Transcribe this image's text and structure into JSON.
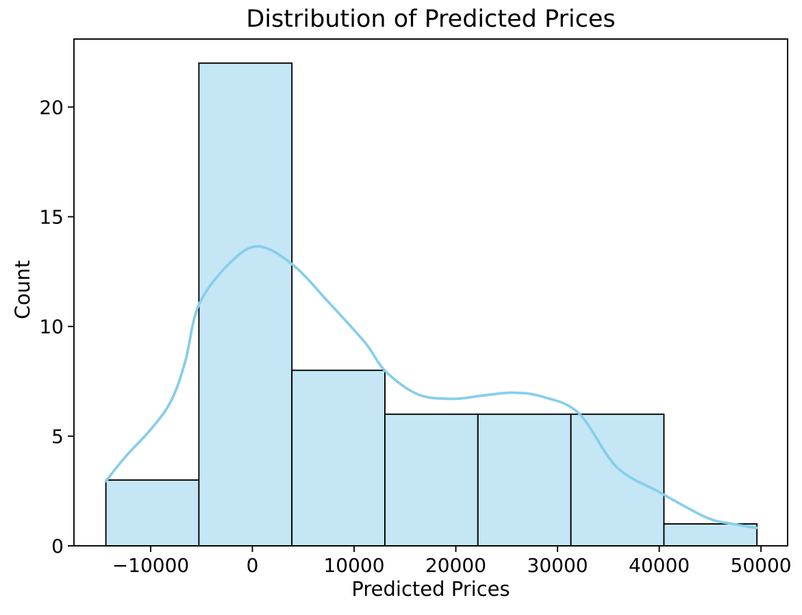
{
  "figure": {
    "background": "#ffffff"
  },
  "chart_data": {
    "type": "bar",
    "subtype": "histogram_with_kde",
    "title": "Distribution of Predicted Prices",
    "xlabel": "Predicted Prices",
    "ylabel": "Count",
    "grid": false,
    "legend": null,
    "xlim": [
      -17540,
      52620
    ],
    "ylim": [
      0,
      23.1
    ],
    "bin_edges": [
      -14400,
      -5257,
      3886,
      13029,
      22171,
      31314,
      40457,
      49600
    ],
    "counts": [
      3,
      22,
      8,
      6,
      6,
      6,
      1
    ],
    "total_count": 52,
    "xticks": [
      {
        "value": -10000,
        "label": "−10000"
      },
      {
        "value": 0,
        "label": "0"
      },
      {
        "value": 10000,
        "label": "10000"
      },
      {
        "value": 20000,
        "label": "20000"
      },
      {
        "value": 30000,
        "label": "30000"
      },
      {
        "value": 40000,
        "label": "40000"
      },
      {
        "value": 50000,
        "label": "50000"
      }
    ],
    "yticks": [
      {
        "value": 0,
        "label": "0"
      },
      {
        "value": 5,
        "label": "5"
      },
      {
        "value": 10,
        "label": "10"
      },
      {
        "value": 15,
        "label": "15"
      },
      {
        "value": 20,
        "label": "20"
      }
    ],
    "kde_points": [
      [
        -14400,
        2.95
      ],
      [
        -12500,
        4.05
      ],
      [
        -10000,
        5.3
      ],
      [
        -8000,
        6.6
      ],
      [
        -6600,
        8.4
      ],
      [
        -5250,
        11.0
      ],
      [
        -2200,
        12.9
      ],
      [
        600,
        13.65
      ],
      [
        4000,
        12.8
      ],
      [
        7500,
        11.1
      ],
      [
        11100,
        9.25
      ],
      [
        13100,
        7.95
      ],
      [
        16300,
        6.9
      ],
      [
        19700,
        6.7
      ],
      [
        22600,
        6.85
      ],
      [
        25600,
        6.98
      ],
      [
        28500,
        6.8
      ],
      [
        32100,
        6.04
      ],
      [
        35800,
        3.6
      ],
      [
        40000,
        2.45
      ],
      [
        44600,
        1.3
      ],
      [
        47200,
        1.0
      ],
      [
        49600,
        0.82
      ]
    ],
    "colors": {
      "bar_fill": "#c5e6f5",
      "bar_edge": "#000000",
      "kde_line": "#87ceeb",
      "spine": "#000000",
      "text": "#000000"
    }
  }
}
